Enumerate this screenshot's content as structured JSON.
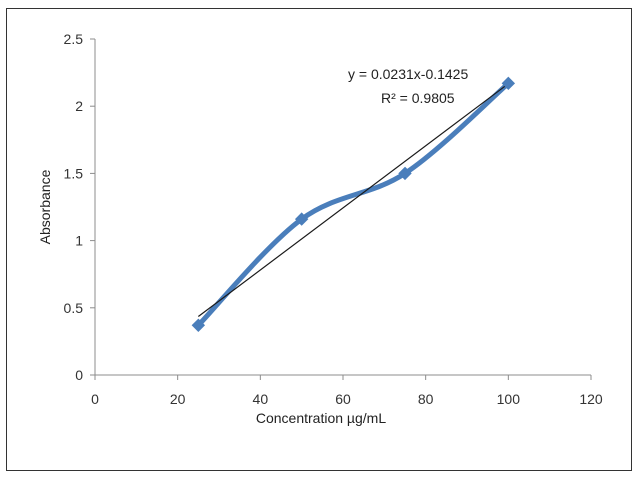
{
  "chart_data": {
    "type": "scatter",
    "title": "",
    "xlabel": "Concentration µg/mL",
    "ylabel": "Absorbance",
    "xlim": [
      0,
      120
    ],
    "ylim": [
      0,
      2.5
    ],
    "x_ticks": [
      "0",
      "20",
      "40",
      "60",
      "80",
      "100",
      "120"
    ],
    "y_ticks": [
      "0",
      "0.5",
      "1",
      "1.5",
      "2",
      "2.5"
    ],
    "grid": false,
    "legend": "none",
    "series": [
      {
        "x": [
          25,
          50,
          75,
          100
        ],
        "y": [
          0.37,
          1.16,
          1.5,
          2.17
        ],
        "color": "#4a7ebb",
        "marker": "diamond",
        "line": "smooth"
      }
    ],
    "trendline": {
      "type": "linear",
      "slope": 0.0231,
      "intercept": -0.1425,
      "x_range": [
        25,
        100
      ],
      "color": "#1a1a1a",
      "equation": "y = 0.0231x-0.1425",
      "r_squared": "R² = 0.9805"
    }
  }
}
